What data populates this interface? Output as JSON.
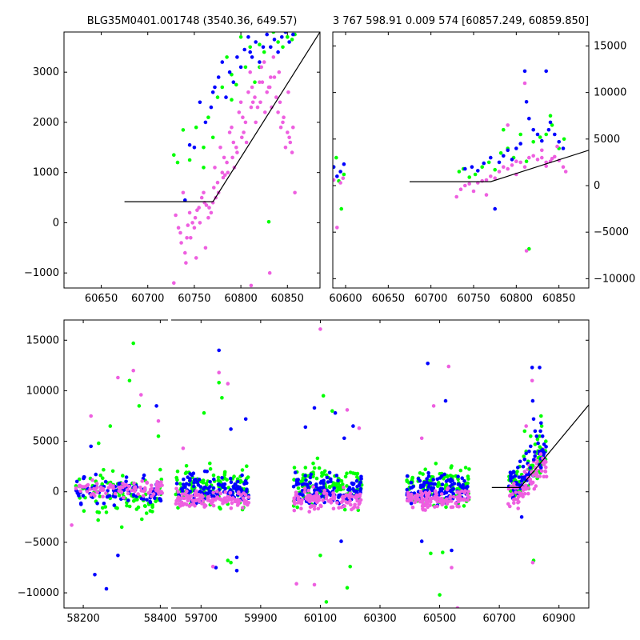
{
  "figure": {
    "title_left": "BLG35M0401.001748 (3540.36, 649.57)",
    "title_right": "3 767 598.91 0.009 574 [60857.249, 60859.850]"
  },
  "colors": {
    "green": "#00ff00",
    "blue": "#0000ff",
    "pink": "#ee5fe0",
    "line": "#000000"
  },
  "chart_data": [
    {
      "type": "scatter",
      "panel": "top-left zoom",
      "title": "BLG35M0401.001748 (3540.36, 649.57)",
      "xlabel": "",
      "ylabel": "",
      "xlim": [
        60610,
        60885
      ],
      "ylim": [
        -1300,
        3800
      ],
      "x_ticks": [
        60650,
        60700,
        60750,
        60800,
        60850
      ],
      "y_ticks": [
        -1000,
        0,
        1000,
        2000,
        3000
      ],
      "series": [
        {
          "color": "green",
          "x": [
            60728,
            60732,
            60738,
            60745,
            60752,
            60760,
            60765,
            60770,
            60775,
            60780,
            60785,
            60790,
            60795,
            60800,
            60805,
            60810,
            60815,
            60820,
            60825,
            60830,
            60835,
            60840,
            60845,
            60850,
            60855,
            60858,
            60760,
            60790,
            60820,
            60850
          ],
          "y": [
            1350,
            1200,
            1850,
            1250,
            1900,
            1500,
            2100,
            1700,
            2500,
            2700,
            3300,
            2450,
            2750,
            3700,
            3100,
            3500,
            2800,
            3100,
            3400,
            20,
            3800,
            3600,
            3500,
            3700,
            3650,
            3750,
            1100,
            2950,
            3550,
            3700
          ]
        },
        {
          "color": "blue",
          "x": [
            60745,
            60750,
            60756,
            60762,
            60768,
            60772,
            60776,
            60780,
            60784,
            60788,
            60792,
            60796,
            60800,
            60804,
            60808,
            60812,
            60816,
            60820,
            60824,
            60828,
            60832,
            60836,
            60840,
            60844,
            60848,
            60852,
            60856,
            60740,
            60770,
            60810
          ],
          "y": [
            1550,
            1500,
            2400,
            2000,
            2300,
            2700,
            2900,
            3200,
            2500,
            3000,
            2800,
            3300,
            3100,
            3450,
            3700,
            3300,
            3600,
            3200,
            3500,
            3750,
            3500,
            3650,
            3400,
            3700,
            3800,
            3600,
            3750,
            450,
            2600,
            3400
          ]
        },
        {
          "color": "pink",
          "x": [
            60728,
            60730,
            60735,
            60738,
            60740,
            60742,
            60745,
            60748,
            60750,
            60752,
            60755,
            60758,
            60760,
            60762,
            60765,
            60768,
            60770,
            60772,
            60775,
            60778,
            60780,
            60782,
            60785,
            60788,
            60790,
            60792,
            60795,
            60798,
            60800,
            60802,
            60805,
            60808,
            60810,
            60812,
            60815,
            60818,
            60820,
            60822,
            60825,
            60828,
            60830,
            60832,
            60835,
            60838,
            60840,
            60842,
            60845,
            60848,
            60850,
            60852,
            60855,
            60858,
            60736,
            60746,
            60756,
            60766,
            60776,
            60786,
            60796,
            60806,
            60816,
            60826,
            60836,
            60846,
            60856,
            60741,
            60751,
            60761,
            60771,
            60781,
            60791,
            60801,
            60811,
            60821,
            60831,
            60841,
            60851,
            60733,
            60743,
            60753,
            60763,
            60773,
            60783,
            60793,
            60803,
            60813,
            60823,
            60833,
            60843,
            60853,
            60811,
            60831
          ],
          "y": [
            -1200,
            150,
            -200,
            600,
            -600,
            -300,
            200,
            0,
            -100,
            -700,
            300,
            500,
            600,
            -500,
            100,
            200,
            400,
            1100,
            800,
            1500,
            1000,
            1300,
            1200,
            1800,
            1900,
            1600,
            1500,
            2200,
            2400,
            2100,
            2000,
            2600,
            3000,
            2700,
            2500,
            2300,
            2800,
            3100,
            3200,
            2600,
            2700,
            2900,
            3300,
            2500,
            2200,
            2400,
            2000,
            1500,
            1800,
            1700,
            1400,
            600,
            -400,
            -300,
            0,
            300,
            600,
            1000,
            1400,
            1600,
            2000,
            2200,
            2900,
            2100,
            1900,
            -800,
            100,
            400,
            700,
            900,
            1300,
            1700,
            2300,
            2400,
            2700,
            3000,
            2600,
            -100,
            -50,
            250,
            350,
            500,
            950,
            1100,
            1800,
            2400,
            2800,
            2300,
            1900,
            1600,
            -1250,
            -1000
          ]
        }
      ],
      "model_line": {
        "x": [
          60675,
          60770,
          60885
        ],
        "y": [
          420,
          420,
          3800
        ]
      }
    },
    {
      "type": "scatter",
      "panel": "top-right",
      "title": "3 767 598.91 0.009 574 [60857.249, 60859.850]",
      "xlabel": "",
      "ylabel": "",
      "xlim": [
        60585,
        60885
      ],
      "ylim": [
        -11000,
        16500
      ],
      "x_ticks": [
        60600,
        60650,
        60700,
        60750,
        60800,
        60850
      ],
      "y_ticks": [
        -10000,
        -5000,
        0,
        5000,
        10000,
        15000
      ],
      "series": [
        {
          "color": "green",
          "x": [
            60586,
            60589,
            60592,
            60595,
            60598,
            60733,
            60738,
            60745,
            60752,
            60760,
            60768,
            60775,
            60782,
            60790,
            60797,
            60805,
            60812,
            60820,
            60828,
            60835,
            60842,
            60850,
            60856,
            60785,
            60815,
            60840
          ],
          "y": [
            2000,
            3000,
            500,
            -2500,
            1200,
            1500,
            1800,
            900,
            1200,
            2000,
            2500,
            1700,
            3500,
            4000,
            3000,
            5500,
            2600,
            4700,
            5200,
            5500,
            6500,
            4000,
            5000,
            6000,
            -6800,
            7500
          ]
        },
        {
          "color": "blue",
          "x": [
            60586,
            60590,
            60594,
            60598,
            60740,
            60748,
            60755,
            60762,
            60770,
            60775,
            60780,
            60785,
            60790,
            60795,
            60800,
            60805,
            60810,
            60815,
            60820,
            60825,
            60830,
            60835,
            60840,
            60845,
            60850,
            60855,
            60812,
            60838
          ],
          "y": [
            2000,
            1000,
            1500,
            2300,
            1800,
            2000,
            1600,
            2400,
            3000,
            -2500,
            2500,
            3200,
            3800,
            2800,
            4000,
            4500,
            12300,
            7200,
            6000,
            5500,
            4800,
            12300,
            6800,
            5500,
            4700,
            4000,
            9000,
            6000
          ]
        },
        {
          "color": "pink",
          "x": [
            60586,
            60590,
            60594,
            60597,
            60730,
            60735,
            60740,
            60745,
            60750,
            60755,
            60760,
            60765,
            60770,
            60775,
            60780,
            60785,
            60790,
            60795,
            60800,
            60805,
            60810,
            60815,
            60820,
            60825,
            60830,
            60835,
            60840,
            60845,
            60850,
            60855,
            60858,
            60790,
            60810,
            60812,
            60830,
            60848,
            60765,
            60800,
            60842,
            60835
          ],
          "y": [
            600,
            -4500,
            300,
            800,
            -1200,
            -400,
            0,
            200,
            -600,
            300,
            500,
            600,
            1000,
            800,
            1500,
            2000,
            1800,
            2200,
            2600,
            2500,
            2000,
            3000,
            3200,
            2800,
            3000,
            2500,
            2600,
            3100,
            2700,
            2000,
            1500,
            6500,
            11000,
            -7000,
            3800,
            4200,
            -1000,
            1200,
            2900,
            2100
          ]
        }
      ],
      "model_line": {
        "x": [
          60675,
          60770,
          60885
        ],
        "y": [
          420,
          420,
          3800
        ]
      }
    },
    {
      "type": "scatter",
      "panel": "bottom full light curve (broken x axis)",
      "xlabel": "",
      "ylabel": "",
      "segment1_xlim": [
        58150,
        58420
      ],
      "segment2_xlim": [
        59600,
        61000
      ],
      "ylim": [
        -11500,
        17000
      ],
      "x_ticks": [
        58200,
        58400,
        59700,
        59900,
        60100,
        60300,
        60500,
        60700,
        60900
      ],
      "y_ticks": [
        -10000,
        -5000,
        0,
        5000,
        10000,
        15000
      ],
      "seasons": [
        {
          "start": 58180,
          "end": 58405,
          "pink_center": 300,
          "pink_spread": 900,
          "blue_center": -100,
          "blue_spread": 1500,
          "green_center": -300,
          "green_spread": 2200,
          "n": 90
        },
        {
          "start": 59615,
          "end": 59860,
          "pink_center": -700,
          "pink_spread": 900,
          "blue_center": 300,
          "blue_spread": 1400,
          "green_center": 500,
          "green_spread": 2000,
          "n": 120
        },
        {
          "start": 60010,
          "end": 60240,
          "pink_center": -800,
          "pink_spread": 900,
          "blue_center": 200,
          "blue_spread": 1400,
          "green_center": 700,
          "green_spread": 2000,
          "n": 120
        },
        {
          "start": 60390,
          "end": 60600,
          "pink_center": -700,
          "pink_spread": 900,
          "blue_center": 300,
          "blue_spread": 1400,
          "green_center": 600,
          "green_spread": 2000,
          "n": 120
        }
      ],
      "outliers": [
        {
          "color": "green",
          "x": [
            58330,
            58345,
            58320,
            58270,
            58240,
            58395,
            58300,
            59760,
            59770,
            59790,
            59710,
            59800,
            60110,
            60140,
            60190,
            60200,
            60500,
            60470,
            60120,
            60100,
            60510
          ],
          "y": [
            14700,
            8500,
            11000,
            6500,
            4800,
            5500,
            -3500,
            10800,
            9300,
            -6800,
            7800,
            -7000,
            9500,
            8000,
            -9500,
            -7400,
            -10200,
            -6100,
            -10900,
            -6300,
            -6000
          ]
        },
        {
          "color": "blue",
          "x": [
            58230,
            58290,
            58220,
            58390,
            58260,
            59760,
            59850,
            59800,
            59820,
            59750,
            60080,
            60150,
            60170,
            60460,
            60540,
            60520,
            60440,
            60210,
            59820,
            60050,
            60180
          ],
          "y": [
            -8200,
            -6300,
            4500,
            8500,
            -9600,
            14000,
            7200,
            6200,
            -7800,
            -7500,
            8300,
            7800,
            -4900,
            12700,
            -5800,
            9000,
            -4900,
            6500,
            -6500,
            6400,
            5300
          ]
        },
        {
          "color": "pink",
          "x": [
            58330,
            58290,
            58350,
            58220,
            58395,
            58170,
            59760,
            59790,
            59740,
            60100,
            60190,
            60080,
            60530,
            60560,
            60480,
            60020,
            60230,
            60440,
            59640,
            60540
          ],
          "y": [
            12000,
            11300,
            9600,
            7500,
            7000,
            -3300,
            11800,
            10700,
            -7400,
            16100,
            8100,
            -9200,
            12400,
            -11500,
            8500,
            -9100,
            6300,
            5300,
            4300,
            -7500
          ]
        }
      ],
      "event": {
        "start": 60730,
        "end": 60858
      },
      "model_line": {
        "x": [
          60675,
          60770,
          61000
        ],
        "y": [
          420,
          420,
          8600
        ]
      }
    }
  ]
}
